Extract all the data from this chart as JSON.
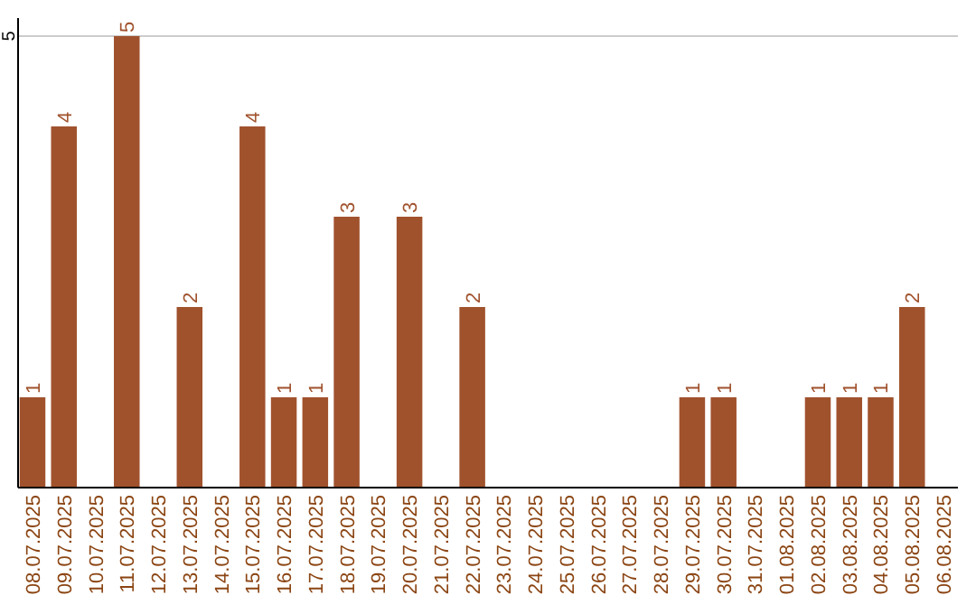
{
  "chart_data": {
    "type": "bar",
    "categories": [
      "08.07.2025",
      "09.07.2025",
      "10.07.2025",
      "11.07.2025",
      "12.07.2025",
      "13.07.2025",
      "14.07.2025",
      "15.07.2025",
      "16.07.2025",
      "17.07.2025",
      "18.07.2025",
      "19.07.2025",
      "20.07.2025",
      "21.07.2025",
      "22.07.2025",
      "23.07.2025",
      "24.07.2025",
      "25.07.2025",
      "26.07.2025",
      "27.07.2025",
      "28.07.2025",
      "29.07.2025",
      "30.07.2025",
      "31.07.2025",
      "01.08.2025",
      "02.08.2025",
      "03.08.2025",
      "04.08.2025",
      "05.08.2025",
      "06.08.2025"
    ],
    "values": [
      1,
      4,
      0,
      5,
      0,
      2,
      0,
      4,
      1,
      1,
      3,
      0,
      3,
      0,
      2,
      0,
      0,
      0,
      0,
      0,
      0,
      1,
      1,
      0,
      0,
      1,
      1,
      1,
      2,
      0
    ],
    "value_labels": [
      "1",
      "4",
      null,
      "5",
      null,
      "2",
      null,
      "4",
      "1",
      "1",
      "3",
      null,
      "3",
      null,
      "2",
      null,
      null,
      null,
      null,
      null,
      null,
      "1",
      "1",
      null,
      null,
      "1",
      "1",
      "1",
      "2",
      null
    ],
    "color": "#a0522d",
    "ylim": [
      0,
      5
    ],
    "yticks": [
      5
    ],
    "ref_lines": [
      {
        "axis": "y",
        "value": 5,
        "color": "#cccccc"
      }
    ]
  }
}
